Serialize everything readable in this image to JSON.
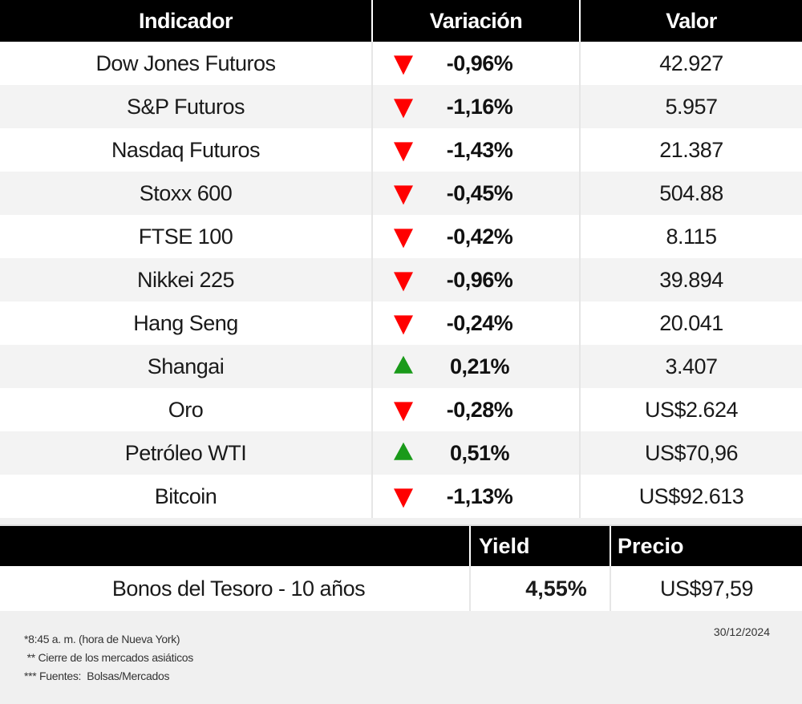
{
  "table": {
    "headers": [
      "Indicador",
      "Variación",
      "Valor"
    ],
    "rows": [
      {
        "indicator": "Dow Jones Futuros",
        "direction": "down",
        "change": "-0,96%",
        "value": "42.927"
      },
      {
        "indicator": "S&P Futuros",
        "direction": "down",
        "change": "-1,16%",
        "value": "5.957"
      },
      {
        "indicator": "Nasdaq Futuros",
        "direction": "down",
        "change": "-1,43%",
        "value": "21.387"
      },
      {
        "indicator": "Stoxx 600",
        "direction": "down",
        "change": "-0,45%",
        "value": "504.88"
      },
      {
        "indicator": "FTSE 100",
        "direction": "down",
        "change": "-0,42%",
        "value": "8.115"
      },
      {
        "indicator": "Nikkei 225",
        "direction": "down",
        "change": "-0,96%",
        "value": "39.894"
      },
      {
        "indicator": "Hang Seng",
        "direction": "down",
        "change": "-0,24%",
        "value": "20.041"
      },
      {
        "indicator": "Shangai",
        "direction": "up",
        "change": "0,21%",
        "value": "3.407"
      },
      {
        "indicator": "Oro",
        "direction": "down",
        "change": "-0,28%",
        "value": "US$2.624"
      },
      {
        "indicator": "Petróleo WTI",
        "direction": "up",
        "change": "0,51%",
        "value": "US$70,96"
      },
      {
        "indicator": "Bitcoin",
        "direction": "down",
        "change": "-1,13%",
        "value": "US$92.613"
      }
    ]
  },
  "bonds": {
    "headers": [
      "",
      "Yield",
      "Precio"
    ],
    "row": {
      "name": "Bonos del Tesoro - 10 años",
      "yield": "4,55%",
      "price": "US$97,59"
    }
  },
  "footer": {
    "notes": [
      "*8:45 a. m. (hora de Nueva York)",
      " ** Cierre de los mercados asiáticos",
      "*** Fuentes:  Bolsas/Mercados"
    ],
    "date": "30/12/2024"
  },
  "colors": {
    "header_bg": "#000000",
    "down": "#ff0000",
    "up": "#1a9a1a",
    "stripe": "#f3f3f3",
    "footer_bg": "#f0f0f0"
  }
}
